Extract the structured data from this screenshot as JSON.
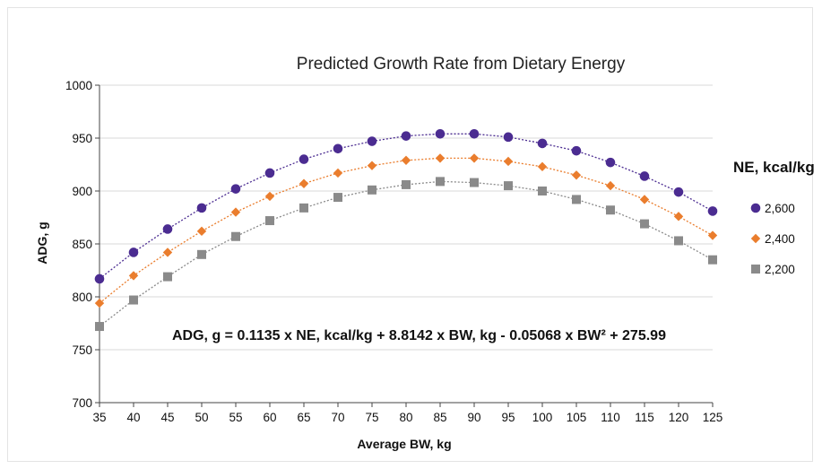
{
  "chart_data": {
    "type": "line",
    "title": "Predicted Growth Rate from Dietary Energy",
    "xlabel": "Average BW, kg",
    "ylabel": "ADG, g",
    "x": [
      35,
      40,
      45,
      50,
      55,
      60,
      65,
      70,
      75,
      80,
      85,
      90,
      95,
      100,
      105,
      110,
      115,
      120,
      125
    ],
    "xlim": [
      35,
      125
    ],
    "ylim": [
      700,
      1000
    ],
    "yticks": [
      700,
      750,
      800,
      850,
      900,
      950,
      1000
    ],
    "grid": "horizontal",
    "legend": {
      "title": "NE, kcal/kg",
      "position": "right"
    },
    "series": [
      {
        "name": "2,600",
        "color": "#4b2c91",
        "marker": "circle",
        "values": [
          817,
          842,
          864,
          884,
          902,
          917,
          930,
          940,
          947,
          952,
          954,
          954,
          951,
          945,
          938,
          927,
          914,
          899,
          881
        ]
      },
      {
        "name": "2,400",
        "color": "#ea7d2d",
        "marker": "diamond",
        "values": [
          794,
          820,
          842,
          862,
          880,
          895,
          907,
          917,
          924,
          929,
          931,
          931,
          928,
          923,
          915,
          905,
          892,
          876,
          858
        ]
      },
      {
        "name": "2,200",
        "color": "#8a8a8a",
        "marker": "square",
        "values": [
          772,
          797,
          819,
          840,
          857,
          872,
          884,
          894,
          901,
          906,
          909,
          908,
          905,
          900,
          892,
          882,
          869,
          853,
          835
        ]
      }
    ],
    "annotation": "ADG, g = 0.1135 x NE, kcal/kg + 8.8142 x BW, kg - 0.05068 x BW² + 275.99"
  }
}
